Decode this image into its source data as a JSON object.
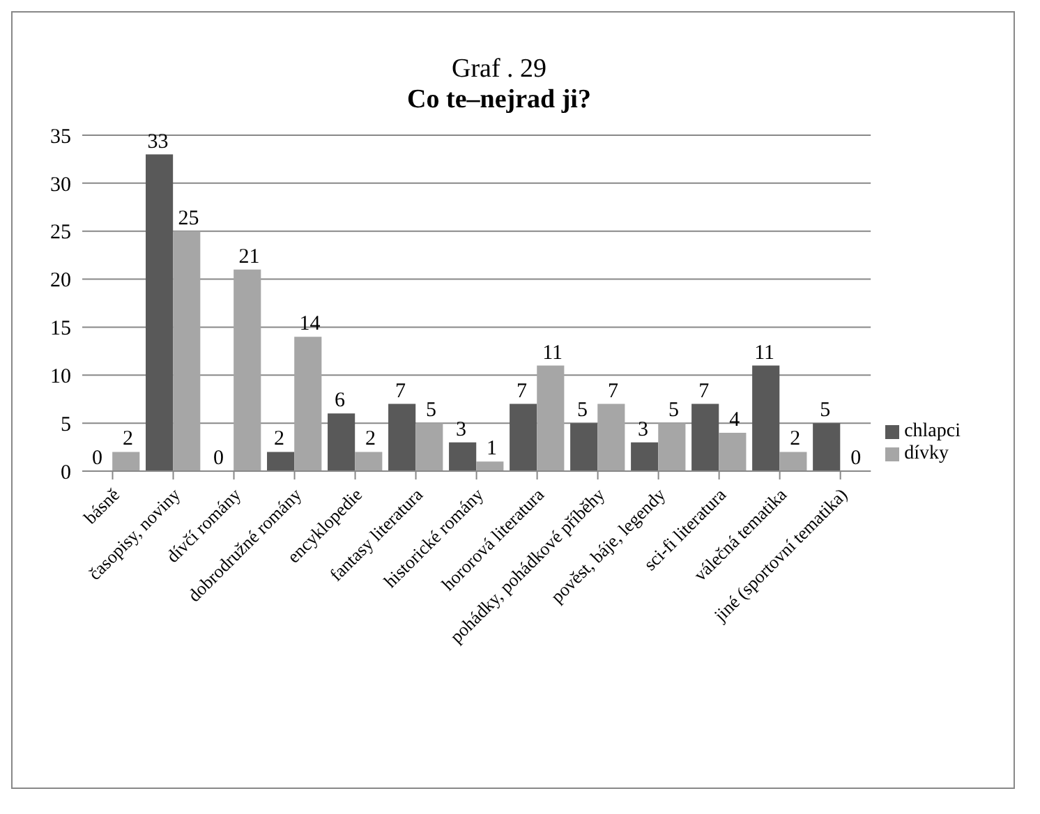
{
  "chart_data": {
    "type": "bar",
    "title": "Graf . 29",
    "subtitle": "Co te–nejrad ji?",
    "categories": [
      "básně",
      "časopisy, noviny",
      "dívčí romány",
      "dobrodružné romány",
      "encyklopedie",
      "fantasy literatura",
      "historické romány",
      "hororová literatura",
      "pohádky, pohádkové příběhy",
      "pověst, báje, legendy",
      "sci-fi literatura",
      "válečná tematika",
      "jiné (sportovní tematika)"
    ],
    "series": [
      {
        "name": "chlapci",
        "color": "#595959",
        "values": [
          0,
          33,
          0,
          2,
          6,
          7,
          3,
          7,
          5,
          3,
          7,
          11,
          5
        ]
      },
      {
        "name": "dívky",
        "color": "#a6a6a6",
        "values": [
          2,
          25,
          21,
          14,
          2,
          5,
          1,
          11,
          7,
          5,
          4,
          2,
          0
        ]
      }
    ],
    "ylim": [
      0,
      35
    ],
    "yticks": [
      0,
      5,
      10,
      15,
      20,
      25,
      30,
      35
    ],
    "grid": "y",
    "legend": "right",
    "data_labels": true
  }
}
